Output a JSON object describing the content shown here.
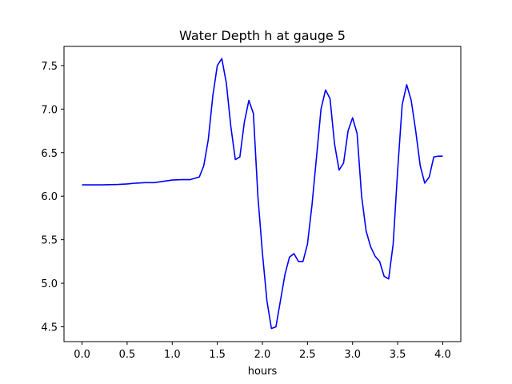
{
  "chart_data": {
    "type": "line",
    "title": "Water Depth h at gauge 5",
    "xlabel": "hours",
    "ylabel": "",
    "xlim": [
      -0.2,
      4.2
    ],
    "ylim": [
      4.33,
      7.72
    ],
    "xticks": [
      0.0,
      0.5,
      1.0,
      1.5,
      2.0,
      2.5,
      3.0,
      3.5,
      4.0
    ],
    "xtick_labels": [
      "0.0",
      "0.5",
      "1.0",
      "1.5",
      "2.0",
      "2.5",
      "3.0",
      "3.5",
      "4.0"
    ],
    "yticks": [
      4.5,
      5.0,
      5.5,
      6.0,
      6.5,
      7.0,
      7.5
    ],
    "ytick_labels": [
      "4.5",
      "5.0",
      "5.5",
      "6.0",
      "6.5",
      "7.0",
      "7.5"
    ],
    "grid": false,
    "series": [
      {
        "color": "#0000ff",
        "x": [
          0.0,
          0.2,
          0.4,
          0.5,
          0.6,
          0.7,
          0.8,
          0.9,
          1.0,
          1.1,
          1.2,
          1.3,
          1.35,
          1.4,
          1.45,
          1.5,
          1.55,
          1.6,
          1.65,
          1.7,
          1.75,
          1.8,
          1.85,
          1.9,
          1.95,
          2.0,
          2.05,
          2.1,
          2.15,
          2.2,
          2.25,
          2.3,
          2.35,
          2.4,
          2.45,
          2.5,
          2.55,
          2.6,
          2.65,
          2.7,
          2.75,
          2.8,
          2.85,
          2.9,
          2.95,
          3.0,
          3.05,
          3.1,
          3.15,
          3.2,
          3.25,
          3.3,
          3.35,
          3.4,
          3.45,
          3.5,
          3.55,
          3.6,
          3.65,
          3.7,
          3.75,
          3.8,
          3.85,
          3.9,
          3.95,
          4.0
        ],
        "y": [
          6.13,
          6.13,
          6.135,
          6.14,
          6.15,
          6.155,
          6.155,
          6.17,
          6.185,
          6.19,
          6.19,
          6.22,
          6.35,
          6.65,
          7.15,
          7.5,
          7.58,
          7.3,
          6.8,
          6.42,
          6.45,
          6.85,
          7.1,
          6.95,
          6.0,
          5.35,
          4.8,
          4.48,
          4.5,
          4.8,
          5.1,
          5.3,
          5.34,
          5.25,
          5.25,
          5.45,
          5.9,
          6.45,
          7.0,
          7.22,
          7.12,
          6.6,
          6.3,
          6.38,
          6.75,
          6.9,
          6.72,
          6.0,
          5.6,
          5.42,
          5.31,
          5.25,
          5.08,
          5.05,
          5.45,
          6.3,
          7.05,
          7.28,
          7.1,
          6.75,
          6.35,
          6.15,
          6.22,
          6.45,
          6.46,
          6.46
        ]
      }
    ]
  }
}
